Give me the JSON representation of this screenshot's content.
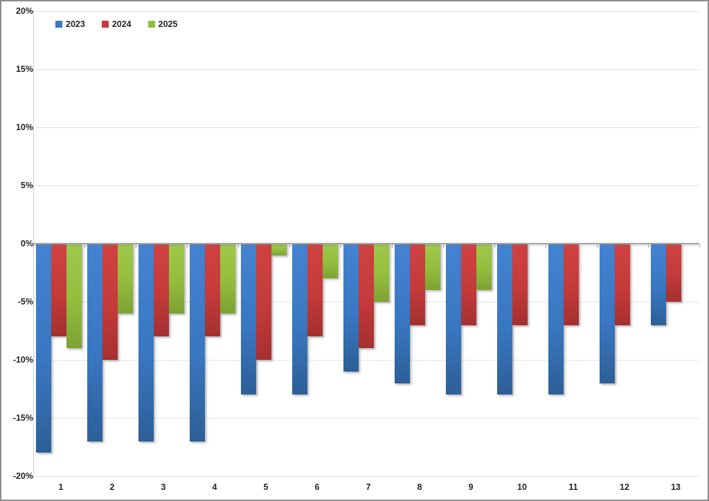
{
  "chart_data": {
    "type": "bar",
    "orientation": "vertical-grouped",
    "title": "",
    "xlabel": "",
    "ylabel": "",
    "categories": [
      "1",
      "2",
      "3",
      "4",
      "5",
      "6",
      "7",
      "8",
      "9",
      "10",
      "11",
      "12",
      "13"
    ],
    "series": [
      {
        "name": "2023",
        "color": "#3A77C2",
        "values": [
          -18,
          -17,
          -17,
          -17,
          -13,
          -13,
          -11,
          -12,
          -13,
          -13,
          -13,
          -12,
          -7
        ]
      },
      {
        "name": "2024",
        "color": "#C43A3A",
        "values": [
          -8,
          -10,
          -8,
          -8,
          -10,
          -8,
          -9,
          -7,
          -7,
          -7,
          -7,
          -7,
          -5
        ]
      },
      {
        "name": "2025",
        "color": "#92BD3D",
        "values": [
          -9,
          -6,
          -6,
          -6,
          -1,
          -3,
          -5,
          -4,
          -4,
          null,
          null,
          null,
          null
        ]
      }
    ],
    "ylim": [
      -20,
      20
    ],
    "yticks": [
      {
        "value": 20,
        "label": "20%"
      },
      {
        "value": 15,
        "label": "15%"
      },
      {
        "value": 10,
        "label": "10%"
      },
      {
        "value": 5,
        "label": "5%"
      },
      {
        "value": 0,
        "label": "0%"
      },
      {
        "value": -5,
        "label": "-5%"
      },
      {
        "value": -10,
        "label": "-10%"
      },
      {
        "value": -15,
        "label": "-15%"
      },
      {
        "value": -20,
        "label": "-20%"
      }
    ],
    "grid": true,
    "gridline_color": "#E2E2E2",
    "zero_axis_color": "#A5A5A5",
    "legend_position": "top-left",
    "legend_labels": [
      "2023",
      "2024",
      "2025"
    ]
  }
}
